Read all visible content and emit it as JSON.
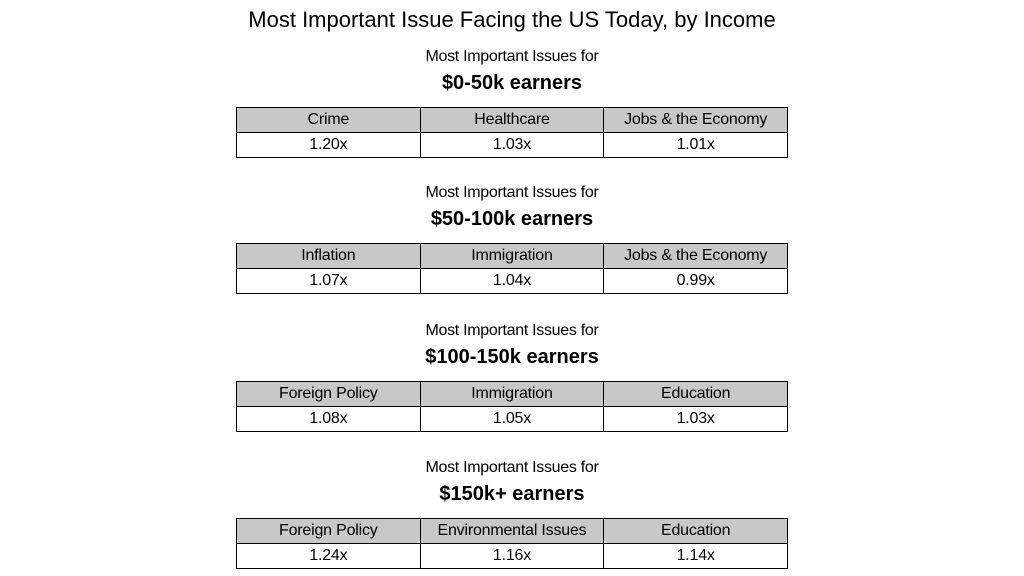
{
  "title": "Most Important Issue Facing the US Today, by Income",
  "chart_data": {
    "type": "table",
    "title": "Most Important Issue Facing the US Today, by Income",
    "groups": [
      {
        "subtitle": "Most Important Issues for",
        "label": "$0-50k earners",
        "issues": [
          "Crime",
          "Healthcare",
          "Jobs & the Economy"
        ],
        "values": [
          "1.20x",
          "1.03x",
          "1.01x"
        ]
      },
      {
        "subtitle": "Most Important Issues for",
        "label": "$50-100k earners",
        "issues": [
          "Inflation",
          "Immigration",
          "Jobs & the Economy"
        ],
        "values": [
          "1.07x",
          "1.04x",
          "0.99x"
        ]
      },
      {
        "subtitle": "Most Important Issues for",
        "label": "$100-150k earners",
        "issues": [
          "Foreign Policy",
          "Immigration",
          "Education"
        ],
        "values": [
          "1.08x",
          "1.05x",
          "1.03x"
        ]
      },
      {
        "subtitle": "Most Important Issues for",
        "label": "$150k+ earners",
        "issues": [
          "Foreign Policy",
          "Environmental Issues",
          "Education"
        ],
        "values": [
          "1.24x",
          "1.16x",
          "1.14x"
        ]
      }
    ],
    "colors": {
      "header_fill": "#c8c8c8",
      "cell_fill": "#ffffff",
      "border": "#000000"
    }
  }
}
